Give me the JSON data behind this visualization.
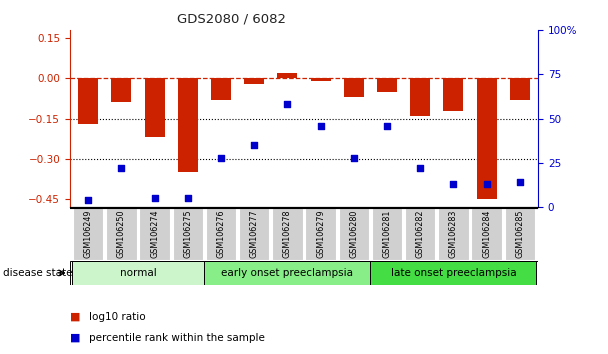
{
  "title": "GDS2080 / 6082",
  "samples": [
    "GSM106249",
    "GSM106250",
    "GSM106274",
    "GSM106275",
    "GSM106276",
    "GSM106277",
    "GSM106278",
    "GSM106279",
    "GSM106280",
    "GSM106281",
    "GSM106282",
    "GSM106283",
    "GSM106284",
    "GSM106285"
  ],
  "log10_ratio": [
    -0.17,
    -0.09,
    -0.22,
    -0.35,
    -0.08,
    -0.02,
    0.02,
    -0.01,
    -0.07,
    -0.05,
    -0.14,
    -0.12,
    -0.45,
    -0.08
  ],
  "percentile_rank": [
    4,
    22,
    5,
    5,
    28,
    35,
    58,
    46,
    28,
    46,
    22,
    13,
    13,
    14
  ],
  "groups": [
    {
      "label": "normal",
      "start": 0,
      "end": 4,
      "color": "#ccf5cc"
    },
    {
      "label": "early onset preeclampsia",
      "start": 4,
      "end": 9,
      "color": "#88ee88"
    },
    {
      "label": "late onset preeclampsia",
      "start": 9,
      "end": 14,
      "color": "#44dd44"
    }
  ],
  "bar_color": "#cc2200",
  "scatter_color": "#0000cc",
  "ref_line_color": "#cc2200",
  "dotted_line_color": "#000000",
  "ylim_left": [
    -0.48,
    0.18
  ],
  "ylim_right": [
    0,
    100
  ],
  "yticks_left": [
    0.15,
    0.0,
    -0.15,
    -0.3,
    -0.45
  ],
  "yticks_right": [
    100,
    75,
    50,
    25,
    0
  ],
  "background_color": "#ffffff",
  "disease_state_label": "disease state",
  "legend": [
    {
      "color": "#cc2200",
      "label": "log10 ratio"
    },
    {
      "color": "#0000cc",
      "label": "percentile rank within the sample"
    }
  ]
}
